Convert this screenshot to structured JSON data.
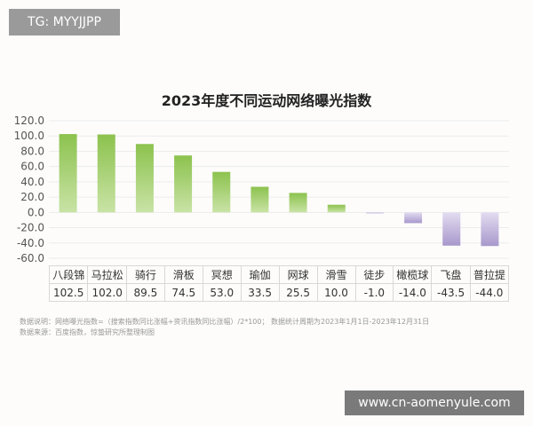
{
  "watermarks": {
    "top_left": "TG: MYYJJPP",
    "bottom_right": "www.cn-aomenyule.com"
  },
  "chart_data": {
    "type": "bar",
    "title": "2023年度不同运动网络曝光指数",
    "categories": [
      "八段锦",
      "马拉松",
      "骑行",
      "滑板",
      "冥想",
      "瑜伽",
      "网球",
      "滑雪",
      "徒步",
      "橄榄球",
      "飞盘",
      "普拉提"
    ],
    "values": [
      102.5,
      102.0,
      89.5,
      74.5,
      53.0,
      33.5,
      25.5,
      10.0,
      -1.0,
      -14.0,
      -43.5,
      -44.0
    ],
    "value_labels": [
      "102.5",
      "102.0",
      "89.5",
      "74.5",
      "53.0",
      "33.5",
      "25.5",
      "10.0",
      "-1.0",
      "-14.0",
      "-43.5",
      "-44.0"
    ],
    "ylim": [
      -60,
      120
    ],
    "yticks": [
      "120.0",
      "100.0",
      "80.0",
      "60.0",
      "40.0",
      "20.0",
      "0.0",
      "-20.0",
      "-40.0",
      "-60.0"
    ],
    "grid": true,
    "colors": {
      "positive": "#9fcf62",
      "negative": "#bfb0dc"
    }
  },
  "notes": {
    "line1": "数据说明：网络曝光指数=（搜索指数同比涨幅+资讯指数同比涨幅）/2*100；  数据统计周期为2023年1月1日-2023年12月31日",
    "line2": "数据来源：百度指数，惊蛰研究所整理制图"
  }
}
